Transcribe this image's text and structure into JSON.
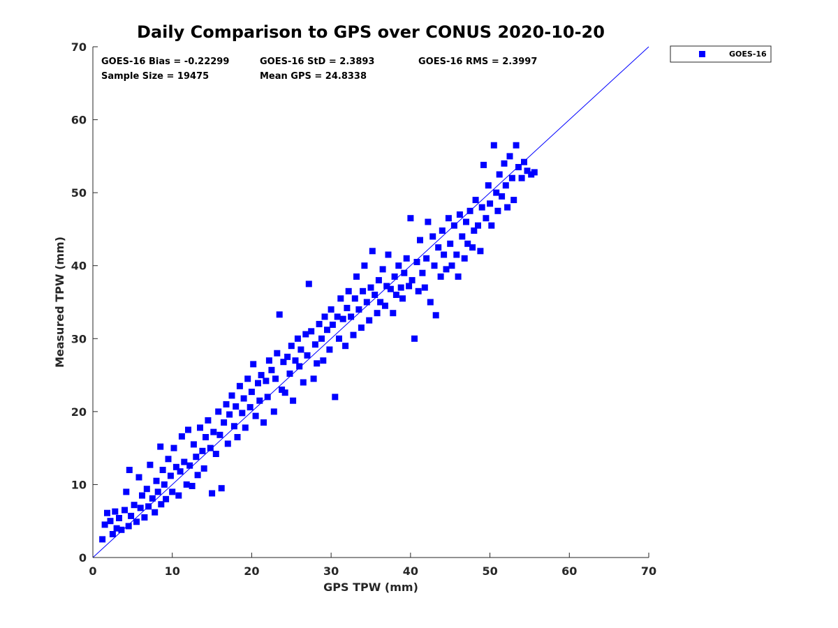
{
  "chart_data": {
    "type": "scatter",
    "title": "Daily Comparison to GPS over CONUS 2020-10-20",
    "xlabel": "GPS TPW (mm)",
    "ylabel": "Measured TPW (mm)",
    "xlim": [
      0,
      70
    ],
    "ylim": [
      0,
      70
    ],
    "xticks": [
      "0",
      "10",
      "20",
      "30",
      "40",
      "50",
      "60",
      "70"
    ],
    "yticks": [
      "0",
      "10",
      "20",
      "30",
      "40",
      "50",
      "60",
      "70"
    ],
    "grid": false,
    "legend_position": "outside-top-right",
    "reference_line": {
      "name": "1:1 line",
      "x": [
        0,
        70
      ],
      "y": [
        0,
        70
      ]
    },
    "annotations": [
      "GOES-16 Bias = -0.22299",
      "GOES-16 StD = 2.3893",
      "GOES-16 RMS = 2.3997",
      "Sample Size = 19475",
      "Mean GPS = 24.8338"
    ],
    "statistics": {
      "bias": -0.22299,
      "std": 2.3893,
      "rms": 2.3997,
      "sample_size": 19475,
      "mean_gps": 24.8338
    },
    "series": [
      {
        "name": "GOES-16",
        "color": "#0000ff",
        "marker": "square",
        "points": [
          [
            1.2,
            2.5
          ],
          [
            1.5,
            4.5
          ],
          [
            1.8,
            6.1
          ],
          [
            2.2,
            5.0
          ],
          [
            2.5,
            3.2
          ],
          [
            2.8,
            6.3
          ],
          [
            3.0,
            4.0
          ],
          [
            3.3,
            5.4
          ],
          [
            3.6,
            3.8
          ],
          [
            4.0,
            6.5
          ],
          [
            4.2,
            9.0
          ],
          [
            4.5,
            4.3
          ],
          [
            4.6,
            12.0
          ],
          [
            4.8,
            5.7
          ],
          [
            5.2,
            7.2
          ],
          [
            5.5,
            4.9
          ],
          [
            5.8,
            11.0
          ],
          [
            6.0,
            6.8
          ],
          [
            6.2,
            8.5
          ],
          [
            6.5,
            5.5
          ],
          [
            6.8,
            9.4
          ],
          [
            7.0,
            7.0
          ],
          [
            7.2,
            12.7
          ],
          [
            7.5,
            8.1
          ],
          [
            7.8,
            6.2
          ],
          [
            8.0,
            10.5
          ],
          [
            8.2,
            9.0
          ],
          [
            8.5,
            15.2
          ],
          [
            8.6,
            7.3
          ],
          [
            8.8,
            12.0
          ],
          [
            9.0,
            10.0
          ],
          [
            9.2,
            8.0
          ],
          [
            9.5,
            13.5
          ],
          [
            9.8,
            11.2
          ],
          [
            10.0,
            9.0
          ],
          [
            10.2,
            15.0
          ],
          [
            10.5,
            12.4
          ],
          [
            10.8,
            8.5
          ],
          [
            11.0,
            11.8
          ],
          [
            11.2,
            16.6
          ],
          [
            11.5,
            13.1
          ],
          [
            11.8,
            10.0
          ],
          [
            12.0,
            17.5
          ],
          [
            12.2,
            12.6
          ],
          [
            12.5,
            9.8
          ],
          [
            12.7,
            15.5
          ],
          [
            13.0,
            13.8
          ],
          [
            13.2,
            11.3
          ],
          [
            13.5,
            17.8
          ],
          [
            13.8,
            14.6
          ],
          [
            14.0,
            12.2
          ],
          [
            14.2,
            16.5
          ],
          [
            14.5,
            18.8
          ],
          [
            14.8,
            15.0
          ],
          [
            15.0,
            8.8
          ],
          [
            15.2,
            17.2
          ],
          [
            15.5,
            14.2
          ],
          [
            15.8,
            20.0
          ],
          [
            16.0,
            16.8
          ],
          [
            16.2,
            9.5
          ],
          [
            16.5,
            18.5
          ],
          [
            16.8,
            21.0
          ],
          [
            17.0,
            15.6
          ],
          [
            17.2,
            19.6
          ],
          [
            17.5,
            22.2
          ],
          [
            17.8,
            18.0
          ],
          [
            18.0,
            20.7
          ],
          [
            18.2,
            16.5
          ],
          [
            18.5,
            23.5
          ],
          [
            18.8,
            19.8
          ],
          [
            19.0,
            21.8
          ],
          [
            19.2,
            17.8
          ],
          [
            19.5,
            24.5
          ],
          [
            19.8,
            20.6
          ],
          [
            20.0,
            22.7
          ],
          [
            20.2,
            26.5
          ],
          [
            20.5,
            19.4
          ],
          [
            20.8,
            23.9
          ],
          [
            21.0,
            21.5
          ],
          [
            21.2,
            25.0
          ],
          [
            21.5,
            18.5
          ],
          [
            21.8,
            24.2
          ],
          [
            22.0,
            22.0
          ],
          [
            22.2,
            27.0
          ],
          [
            22.5,
            25.7
          ],
          [
            22.8,
            20.0
          ],
          [
            23.0,
            24.5
          ],
          [
            23.2,
            28.0
          ],
          [
            23.5,
            33.3
          ],
          [
            23.8,
            23.0
          ],
          [
            24.0,
            26.8
          ],
          [
            24.2,
            22.6
          ],
          [
            24.5,
            27.5
          ],
          [
            24.8,
            25.2
          ],
          [
            25.0,
            29.0
          ],
          [
            25.2,
            21.5
          ],
          [
            25.5,
            27.0
          ],
          [
            25.8,
            30.0
          ],
          [
            26.0,
            26.2
          ],
          [
            26.2,
            28.5
          ],
          [
            26.5,
            24.0
          ],
          [
            26.8,
            30.6
          ],
          [
            27.0,
            27.7
          ],
          [
            27.2,
            37.5
          ],
          [
            27.5,
            31.0
          ],
          [
            27.8,
            24.5
          ],
          [
            28.0,
            29.2
          ],
          [
            28.2,
            26.6
          ],
          [
            28.5,
            32.0
          ],
          [
            28.8,
            30.0
          ],
          [
            29.0,
            27.0
          ],
          [
            29.2,
            33.0
          ],
          [
            29.5,
            31.2
          ],
          [
            29.8,
            28.5
          ],
          [
            30.0,
            34.0
          ],
          [
            30.2,
            31.9
          ],
          [
            30.5,
            22.0
          ],
          [
            30.8,
            33.0
          ],
          [
            31.0,
            30.0
          ],
          [
            31.2,
            35.5
          ],
          [
            31.5,
            32.7
          ],
          [
            31.8,
            29.0
          ],
          [
            32.0,
            34.2
          ],
          [
            32.2,
            36.5
          ],
          [
            32.5,
            33.0
          ],
          [
            32.8,
            30.5
          ],
          [
            33.0,
            35.5
          ],
          [
            33.2,
            38.5
          ],
          [
            33.5,
            34.0
          ],
          [
            33.8,
            31.5
          ],
          [
            34.0,
            36.5
          ],
          [
            34.2,
            40.0
          ],
          [
            34.5,
            35.0
          ],
          [
            34.8,
            32.5
          ],
          [
            35.0,
            37.0
          ],
          [
            35.2,
            42.0
          ],
          [
            35.5,
            36.0
          ],
          [
            35.8,
            33.5
          ],
          [
            36.0,
            38.0
          ],
          [
            36.2,
            35.0
          ],
          [
            36.5,
            39.5
          ],
          [
            36.8,
            34.5
          ],
          [
            37.0,
            37.2
          ],
          [
            37.2,
            41.5
          ],
          [
            37.5,
            36.8
          ],
          [
            37.8,
            33.5
          ],
          [
            38.0,
            38.5
          ],
          [
            38.2,
            36.0
          ],
          [
            38.5,
            40.0
          ],
          [
            38.8,
            37.0
          ],
          [
            39.0,
            35.5
          ],
          [
            39.2,
            39.0
          ],
          [
            39.5,
            41.0
          ],
          [
            39.8,
            37.2
          ],
          [
            40.0,
            46.5
          ],
          [
            40.2,
            38.0
          ],
          [
            40.5,
            30.0
          ],
          [
            40.8,
            40.5
          ],
          [
            41.0,
            36.5
          ],
          [
            41.2,
            43.5
          ],
          [
            41.5,
            39.0
          ],
          [
            41.8,
            37.0
          ],
          [
            42.0,
            41.0
          ],
          [
            42.2,
            46.0
          ],
          [
            42.5,
            35.0
          ],
          [
            42.8,
            44.0
          ],
          [
            43.0,
            40.0
          ],
          [
            43.2,
            33.2
          ],
          [
            43.5,
            42.5
          ],
          [
            43.8,
            38.5
          ],
          [
            44.0,
            44.8
          ],
          [
            44.2,
            41.5
          ],
          [
            44.5,
            39.5
          ],
          [
            44.8,
            46.5
          ],
          [
            45.0,
            43.0
          ],
          [
            45.2,
            40.0
          ],
          [
            45.5,
            45.5
          ],
          [
            45.8,
            41.5
          ],
          [
            46.0,
            38.5
          ],
          [
            46.2,
            47.0
          ],
          [
            46.5,
            44.0
          ],
          [
            46.8,
            41.0
          ],
          [
            47.0,
            46.0
          ],
          [
            47.2,
            43.0
          ],
          [
            47.5,
            47.5
          ],
          [
            47.8,
            42.5
          ],
          [
            48.0,
            44.8
          ],
          [
            48.2,
            49.0
          ],
          [
            48.5,
            45.5
          ],
          [
            48.8,
            42.0
          ],
          [
            49.0,
            48.0
          ],
          [
            49.2,
            53.8
          ],
          [
            49.5,
            46.5
          ],
          [
            49.8,
            51.0
          ],
          [
            50.0,
            48.5
          ],
          [
            50.2,
            45.5
          ],
          [
            50.5,
            56.5
          ],
          [
            50.8,
            50.0
          ],
          [
            51.0,
            47.5
          ],
          [
            51.2,
            52.5
          ],
          [
            51.5,
            49.5
          ],
          [
            51.8,
            54.0
          ],
          [
            52.0,
            51.0
          ],
          [
            52.2,
            48.0
          ],
          [
            52.5,
            55.0
          ],
          [
            52.8,
            52.0
          ],
          [
            53.0,
            49.0
          ],
          [
            53.3,
            56.5
          ],
          [
            53.6,
            53.5
          ],
          [
            54.0,
            52.0
          ],
          [
            54.3,
            54.2
          ],
          [
            54.7,
            53.0
          ],
          [
            55.2,
            52.5
          ],
          [
            55.6,
            52.8
          ]
        ]
      }
    ]
  }
}
